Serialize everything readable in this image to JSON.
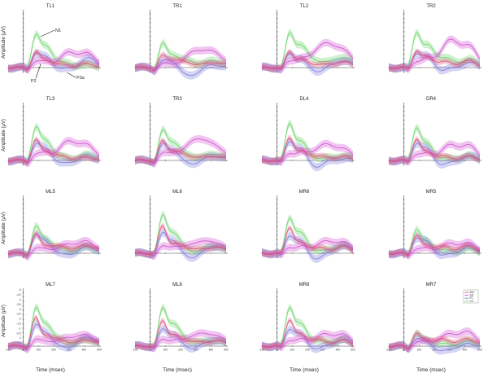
{
  "chart_data": {
    "type": "line",
    "ylabel": "Amplitude (μV)",
    "xlabel": "Time (msec)",
    "x_ticks": [
      -100,
      0,
      100,
      200,
      300,
      400,
      500
    ],
    "y_ticks": [
      -5,
      -4.5,
      -4,
      -3.5,
      -3,
      -2.5,
      -2,
      -1.5,
      -1,
      -0.5,
      0,
      0.5
    ],
    "xlim": [
      -100,
      500
    ],
    "ylim": [
      -5,
      0.7
    ],
    "series": [
      {
        "name": "INV",
        "color": "#e0507a"
      },
      {
        "name": "SS",
        "color": "#d04cd0"
      },
      {
        "name": "FC",
        "color": "#7b78dd"
      },
      {
        "name": "CC",
        "color": "#6ad46a"
      }
    ],
    "panels": [
      {
        "title": "TL1",
        "c": {
          "CC": [
            3.2,
            2.2,
            0.5,
            0.3
          ],
          "SS": [
            0.6,
            0.6,
            1.6,
            1.4
          ],
          "FC": [
            1.3,
            1.2,
            -0.2,
            1.0
          ],
          "INV": [
            1.5,
            0.8,
            0.3,
            0.4
          ]
        }
      },
      {
        "title": "TR1",
        "c": {
          "CC": [
            2.3,
            1.3,
            0.7,
            0.8
          ],
          "SS": [
            0.3,
            0.4,
            1.9,
            1.6
          ],
          "FC": [
            0.5,
            0.9,
            -1.0,
            0.3
          ],
          "INV": [
            1.1,
            0.9,
            0.5,
            0.6
          ]
        }
      },
      {
        "title": "TL2",
        "c": {
          "CC": [
            3.2,
            2.4,
            0.8,
            1.2
          ],
          "SS": [
            0.4,
            1.0,
            2.6,
            2.0
          ],
          "FC": [
            1.2,
            1.1,
            -0.4,
            0.8
          ],
          "INV": [
            1.6,
            0.8,
            0.4,
            0.6
          ]
        }
      },
      {
        "title": "TR2",
        "c": {
          "CC": [
            3.4,
            2.2,
            1.1,
            0.9
          ],
          "SS": [
            0.5,
            0.9,
            2.9,
            2.2
          ],
          "FC": [
            1.3,
            1.3,
            -0.3,
            0.5
          ],
          "INV": [
            1.6,
            1.0,
            0.6,
            0.7
          ]
        }
      },
      {
        "title": "TL3",
        "c": {
          "CC": [
            3.2,
            2.1,
            0.3,
            0.6
          ],
          "SS": [
            0.5,
            0.8,
            2.1,
            1.5
          ],
          "FC": [
            1.5,
            1.4,
            -0.4,
            0.4
          ],
          "INV": [
            2.0,
            1.0,
            0.4,
            0.3
          ]
        }
      },
      {
        "title": "TR3",
        "c": {
          "CC": [
            2.8,
            2.0,
            0.5,
            0.7
          ],
          "SS": [
            0.5,
            0.9,
            2.4,
            1.6
          ],
          "FC": [
            1.4,
            1.3,
            -0.4,
            0.5
          ],
          "INV": [
            1.9,
            1.0,
            0.5,
            0.5
          ]
        }
      },
      {
        "title": "DL4",
        "c": {
          "CC": [
            3.6,
            2.1,
            0.3,
            0.5
          ],
          "SS": [
            0.5,
            0.9,
            1.7,
            1.3
          ],
          "FC": [
            1.7,
            1.5,
            -0.7,
            0.2
          ],
          "INV": [
            2.4,
            0.9,
            0.5,
            0.4
          ]
        }
      },
      {
        "title": "DR4",
        "c": {
          "CC": [
            3.3,
            1.8,
            0.2,
            0.5
          ],
          "SS": [
            0.6,
            0.7,
            1.6,
            1.5
          ],
          "FC": [
            1.6,
            1.4,
            -0.5,
            0.4
          ],
          "INV": [
            2.2,
            0.8,
            0.4,
            0.4
          ]
        }
      },
      {
        "title": "ML5",
        "c": {
          "CC": [
            2.6,
            1.5,
            0.4,
            0.7
          ],
          "SS": [
            0.4,
            0.5,
            1.0,
            1.2
          ],
          "FC": [
            1.6,
            1.4,
            -0.2,
            0.7
          ],
          "INV": [
            1.9,
            0.8,
            0.7,
            0.9
          ]
        }
      },
      {
        "title": "ML6",
        "c": {
          "CC": [
            3.6,
            2.3,
            0.3,
            0.9
          ],
          "SS": [
            0.5,
            0.8,
            1.2,
            1.2
          ],
          "FC": [
            1.8,
            1.6,
            -0.5,
            0.8
          ],
          "INV": [
            2.8,
            1.0,
            0.6,
            0.7
          ]
        }
      },
      {
        "title": "MR6",
        "c": {
          "CC": [
            3.4,
            2.2,
            0.3,
            0.9
          ],
          "SS": [
            0.5,
            0.7,
            1.2,
            1.2
          ],
          "FC": [
            1.6,
            1.5,
            -0.6,
            0.8
          ],
          "INV": [
            2.7,
            1.0,
            0.6,
            0.7
          ]
        }
      },
      {
        "title": "MR5",
        "c": {
          "CC": [
            2.4,
            1.2,
            0.3,
            0.5
          ],
          "SS": [
            0.4,
            0.5,
            1.0,
            1.0
          ],
          "FC": [
            1.4,
            1.3,
            -0.3,
            0.7
          ],
          "INV": [
            1.8,
            0.7,
            0.7,
            0.8
          ]
        }
      },
      {
        "title": "ML7",
        "c": {
          "CC": [
            3.6,
            2.4,
            0.5,
            0.7
          ],
          "SS": [
            0.5,
            0.6,
            1.0,
            1.1
          ],
          "FC": [
            1.9,
            1.6,
            -0.2,
            1.0
          ],
          "INV": [
            2.8,
            1.1,
            0.6,
            0.7
          ]
        }
      },
      {
        "title": "ML8",
        "c": {
          "CC": [
            3.6,
            2.4,
            0.6,
            0.7
          ],
          "SS": [
            0.5,
            0.7,
            1.3,
            1.2
          ],
          "FC": [
            1.5,
            1.4,
            -0.2,
            0.7
          ],
          "INV": [
            2.6,
            1.1,
            0.6,
            0.6
          ]
        }
      },
      {
        "title": "MR8",
        "c": {
          "CC": [
            3.8,
            2.3,
            0.6,
            0.7
          ],
          "SS": [
            0.5,
            0.7,
            1.2,
            1.2
          ],
          "FC": [
            1.6,
            1.4,
            -0.3,
            0.7
          ],
          "INV": [
            2.7,
            1.1,
            0.7,
            0.6
          ]
        }
      },
      {
        "title": "MR7",
        "c": {
          "CC": [
            1.3,
            0.6,
            0.2,
            0.5
          ],
          "SS": [
            0.3,
            0.5,
            1.3,
            1.4
          ],
          "FC": [
            0.7,
            0.6,
            -0.6,
            0.2
          ],
          "INV": [
            1.2,
            0.6,
            0.7,
            0.8
          ]
        }
      }
    ],
    "annotations": [
      {
        "text": "N1",
        "panel": "TL1"
      },
      {
        "text": "P2",
        "panel": "TL1"
      },
      {
        "text": "P3a",
        "panel": "TL1"
      }
    ],
    "legend_panel": "MR7",
    "legend_position": "top-right"
  }
}
